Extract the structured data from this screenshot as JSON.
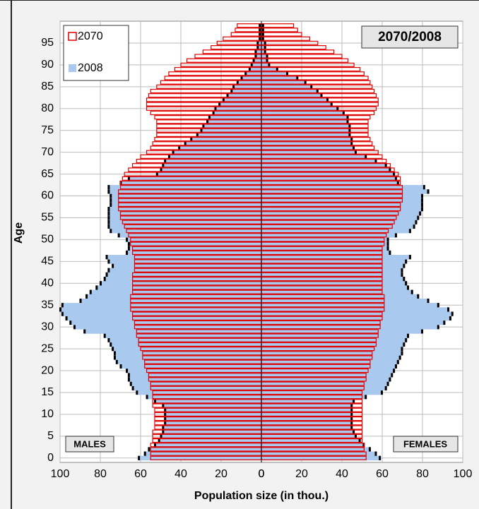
{
  "chart_data": {
    "type": "pyramid",
    "title": "2070/2008",
    "xlabel": "Population size (in thou.)",
    "ylabel": "Age",
    "left_label": "MALES",
    "right_label": "FEMALES",
    "xlim": [
      0,
      100
    ],
    "xticks": [
      0,
      20,
      40,
      60,
      80,
      100
    ],
    "ylim": [
      -1,
      100
    ],
    "yticks": [
      0,
      5,
      10,
      15,
      20,
      25,
      30,
      35,
      40,
      45,
      50,
      55,
      60,
      65,
      70,
      75,
      80,
      85,
      90,
      95
    ],
    "grid": true,
    "legend": "top-left",
    "y": [
      0,
      1,
      2,
      3,
      4,
      5,
      6,
      7,
      8,
      9,
      10,
      11,
      12,
      13,
      14,
      15,
      16,
      17,
      18,
      19,
      20,
      21,
      22,
      23,
      24,
      25,
      26,
      27,
      28,
      29,
      30,
      31,
      32,
      33,
      34,
      35,
      36,
      37,
      38,
      39,
      40,
      41,
      42,
      43,
      44,
      45,
      46,
      47,
      48,
      49,
      50,
      51,
      52,
      53,
      54,
      55,
      56,
      57,
      58,
      59,
      60,
      61,
      62,
      63,
      64,
      65,
      66,
      67,
      68,
      69,
      70,
      71,
      72,
      73,
      74,
      75,
      76,
      77,
      78,
      79,
      80,
      81,
      82,
      83,
      84,
      85,
      86,
      87,
      88,
      89,
      90,
      91,
      92,
      93,
      94,
      95,
      96,
      97,
      98,
      99
    ],
    "series": [
      {
        "name": "2070",
        "color": "#e00000",
        "males": [
          55,
          55,
          55,
          55,
          54,
          54,
          54,
          53,
          53,
          53,
          53,
          53,
          54,
          54,
          54,
          54,
          55,
          55,
          56,
          56,
          57,
          58,
          58,
          59,
          59,
          60,
          61,
          61,
          62,
          62,
          63,
          63,
          64,
          64,
          65,
          65,
          65,
          65,
          64,
          64,
          64,
          64,
          64,
          63,
          63,
          63,
          63,
          64,
          64,
          65,
          65,
          66,
          67,
          68,
          69,
          70,
          70,
          71,
          71,
          71,
          71,
          71,
          70,
          70,
          69,
          68,
          66,
          64,
          62,
          60,
          57,
          55,
          54,
          53,
          52,
          52,
          52,
          52,
          53,
          55,
          57,
          57,
          57,
          56,
          55,
          52,
          50,
          48,
          46,
          43,
          40,
          37,
          33,
          29,
          25,
          22,
          19,
          15,
          13,
          12
        ],
        "females": [
          52,
          52,
          51,
          51,
          50,
          50,
          50,
          50,
          50,
          50,
          50,
          50,
          50,
          50,
          50,
          50,
          51,
          51,
          52,
          52,
          53,
          54,
          54,
          55,
          55,
          56,
          57,
          57,
          58,
          58,
          59,
          59,
          60,
          60,
          61,
          61,
          61,
          61,
          60,
          60,
          60,
          60,
          60,
          60,
          60,
          60,
          60,
          60,
          60,
          61,
          61,
          62,
          63,
          65,
          66,
          67,
          68,
          69,
          69,
          70,
          70,
          70,
          70,
          69,
          69,
          68,
          66,
          64,
          62,
          60,
          58,
          56,
          55,
          54,
          53,
          53,
          53,
          53,
          54,
          56,
          57,
          58,
          58,
          57,
          56,
          55,
          54,
          53,
          51,
          49,
          46,
          43,
          40,
          36,
          32,
          28,
          24,
          20,
          18,
          16
        ]
      },
      {
        "name": "2008",
        "color": "#a9c9ee",
        "males": [
          61,
          58,
          56,
          53,
          51,
          50,
          49,
          49,
          48,
          48,
          48,
          48,
          49,
          53,
          57,
          62,
          64,
          65,
          66,
          66,
          67,
          70,
          72,
          73,
          73,
          74,
          75,
          76,
          78,
          88,
          93,
          95,
          97,
          99,
          100,
          99,
          90,
          87,
          85,
          82,
          80,
          78,
          77,
          76,
          74,
          76,
          77,
          67,
          66,
          66,
          67,
          71,
          75,
          76,
          76,
          76,
          76,
          76,
          75,
          75,
          75,
          76,
          76,
          70,
          66,
          52,
          50,
          49,
          48,
          46,
          44,
          41,
          38,
          35,
          32,
          30,
          29,
          27,
          26,
          24,
          23,
          21,
          19,
          17,
          15,
          14,
          12,
          10,
          8,
          6,
          5,
          4,
          3,
          3,
          2,
          2,
          1,
          1,
          1,
          1
        ],
        "females": [
          59,
          57,
          54,
          51,
          49,
          47,
          46,
          45,
          45,
          45,
          45,
          45,
          45,
          46,
          52,
          60,
          62,
          63,
          64,
          65,
          66,
          67,
          68,
          69,
          70,
          70,
          71,
          72,
          73,
          80,
          88,
          91,
          94,
          95,
          93,
          88,
          83,
          78,
          75,
          73,
          72,
          71,
          70,
          70,
          71,
          72,
          74,
          64,
          63,
          63,
          63,
          67,
          74,
          76,
          77,
          78,
          79,
          80,
          80,
          80,
          80,
          83,
          81,
          68,
          67,
          66,
          64,
          62,
          57,
          52,
          47,
          46,
          45,
          45,
          44,
          44,
          44,
          43,
          43,
          41,
          38,
          35,
          33,
          30,
          28,
          25,
          22,
          18,
          13,
          8,
          4,
          3,
          3,
          2,
          2,
          2,
          1,
          1,
          1,
          1
        ]
      }
    ]
  }
}
